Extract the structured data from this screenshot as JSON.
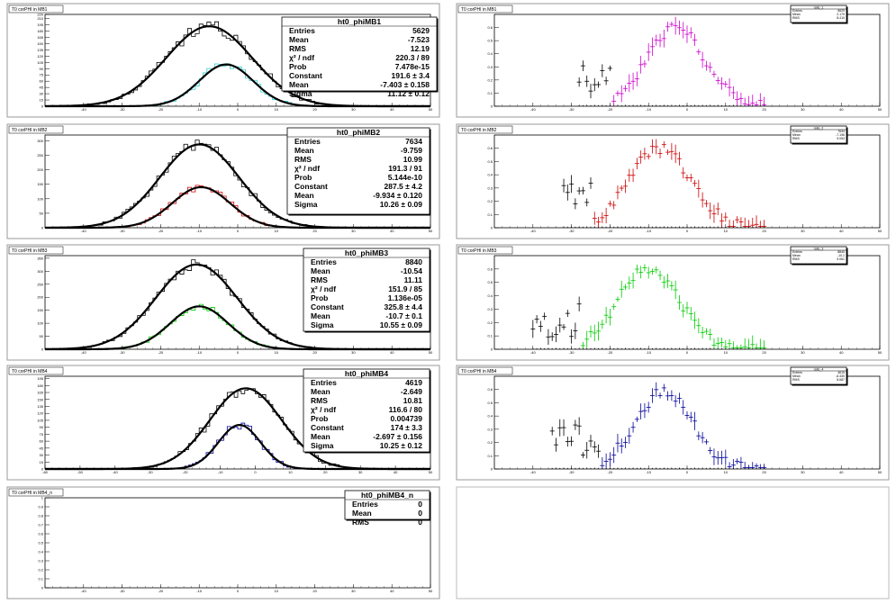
{
  "chart_data": [
    {
      "type": "histogram",
      "pad": "left-1",
      "title": "T0 corPHI in MB1",
      "xlim": [
        -50,
        50
      ],
      "ylim": [
        0,
        220
      ],
      "xticks": [
        -40,
        -30,
        -20,
        -10,
        0,
        10,
        20,
        30,
        40,
        50
      ],
      "xtick_labels": [
        "-40",
        "-30",
        "-20",
        "-10",
        "0",
        "10",
        "20",
        "30",
        "40",
        "50"
      ],
      "yticks": [
        0,
        15,
        30,
        45,
        60,
        75,
        90,
        105,
        120,
        135,
        150,
        165,
        180,
        195,
        210,
        220
      ],
      "ytick_labels": [
        "0",
        "15",
        "30",
        "45",
        "60",
        "75",
        "90",
        "105",
        "120",
        "135",
        "150",
        "165",
        "180",
        "195",
        "210",
        "220"
      ],
      "stats": {
        "name": "ht0_phiMB1",
        "rows": [
          [
            "Entries",
            "5629"
          ],
          [
            "Mean",
            "-7.523"
          ],
          [
            "RMS",
            "12.19"
          ],
          [
            "χ² / ndf",
            "220.3 / 89"
          ],
          [
            "Prob",
            "7.478e-15"
          ],
          [
            "Constant",
            "191.6 ± 3.4"
          ],
          [
            "Mean",
            "-7.403 ± 0.158"
          ],
          [
            "Sigma",
            "11.12 ± 0.12"
          ]
        ]
      },
      "fit": {
        "constant": 191.6,
        "mean": -7.403,
        "sigma": 11.12
      },
      "subset_fit": {
        "constant": 100,
        "mean": -3.0,
        "sigma": 7.0
      },
      "subset_color": "#33cccc",
      "main_color": "#000000"
    },
    {
      "type": "histogram",
      "pad": "left-2",
      "title": "T0 corPHI in MB2",
      "xlim": [
        -50,
        50
      ],
      "ylim": [
        0,
        320
      ],
      "xticks": [
        -40,
        -30,
        -20,
        -10,
        0,
        10,
        20,
        30,
        40,
        50
      ],
      "xtick_labels": [
        "-40",
        "-30",
        "-20",
        "-10",
        "0",
        "10",
        "20",
        "30",
        "40",
        "50"
      ],
      "yticks": [
        0,
        50,
        100,
        150,
        200,
        250,
        300
      ],
      "ytick_labels": [
        "0",
        "50",
        "100",
        "150",
        "200",
        "250",
        "300"
      ],
      "stats": {
        "name": "ht0_phiMB2",
        "rows": [
          [
            "Entries",
            "7634"
          ],
          [
            "Mean",
            "-9.759"
          ],
          [
            "RMS",
            "10.99"
          ],
          [
            "χ² / ndf",
            "191.3 / 91"
          ],
          [
            "Prob",
            "5.144e-10"
          ],
          [
            "Constant",
            "287.5 ± 4.2"
          ],
          [
            "Mean",
            "-9.934 ± 0.120"
          ],
          [
            "Sigma",
            "10.26 ± 0.09"
          ]
        ]
      },
      "fit": {
        "constant": 287.5,
        "mean": -9.934,
        "sigma": 10.26
      },
      "subset_fit": {
        "constant": 140,
        "mean": -9.5,
        "sigma": 7.5
      },
      "subset_color": "#cc0000",
      "main_color": "#000000"
    },
    {
      "type": "histogram",
      "pad": "left-3",
      "title": "T0 corPHI in MB3",
      "xlim": [
        -50,
        50
      ],
      "ylim": [
        0,
        360
      ],
      "xticks": [
        -40,
        -30,
        -20,
        -10,
        0,
        10,
        20,
        30,
        40,
        50
      ],
      "xtick_labels": [
        "-40",
        "-30",
        "-20",
        "-10",
        "0",
        "10",
        "20",
        "30",
        "40",
        "50"
      ],
      "yticks": [
        0,
        50,
        100,
        150,
        200,
        250,
        300,
        350
      ],
      "ytick_labels": [
        "0",
        "50",
        "100",
        "150",
        "200",
        "250",
        "300",
        "350"
      ],
      "stats": {
        "name": "ht0_phiMB3",
        "rows": [
          [
            "Entries",
            "8840"
          ],
          [
            "Mean",
            "-10.54"
          ],
          [
            "RMS",
            "11.11"
          ],
          [
            "χ² / ndf",
            "151.9 / 85"
          ],
          [
            "Prob",
            "1.136e-05"
          ],
          [
            "Constant",
            "325.8 ± 4.4"
          ],
          [
            "Mean",
            "-10.7 ± 0.1"
          ],
          [
            "Sigma",
            "10.55 ± 0.09"
          ]
        ]
      },
      "fit": {
        "constant": 325.8,
        "mean": -10.7,
        "sigma": 10.55
      },
      "subset_fit": {
        "constant": 165,
        "mean": -10.0,
        "sigma": 7.5
      },
      "subset_color": "#00cc00",
      "main_color": "#000000"
    },
    {
      "type": "histogram",
      "pad": "left-4",
      "title": "T0 corPHI in MB4",
      "xlim": [
        -60,
        50
      ],
      "ylim": [
        0,
        200
      ],
      "xticks": [
        -60,
        -50,
        -40,
        -30,
        -20,
        -10,
        0,
        10,
        20,
        30,
        40,
        50
      ],
      "xtick_labels": [
        "-60",
        "-50",
        "-40",
        "-30",
        "-20",
        "-10",
        "0",
        "10",
        "20",
        "30",
        "40",
        "50"
      ],
      "yticks": [
        0,
        15,
        30,
        45,
        60,
        75,
        90,
        105,
        120,
        135,
        150,
        165,
        180,
        195
      ],
      "ytick_labels": [
        "0",
        "15",
        "30",
        "45",
        "60",
        "75",
        "90",
        "105",
        "120",
        "135",
        "150",
        "165",
        "180",
        "195"
      ],
      "stats": {
        "name": "ht0_phiMB4",
        "rows": [
          [
            "Entries",
            "4619"
          ],
          [
            "Mean",
            "-2.649"
          ],
          [
            "RMS",
            "10.81"
          ],
          [
            "χ² / ndf",
            "116.6 / 80"
          ],
          [
            "Prob",
            "0.004739"
          ],
          [
            "Constant",
            "174 ± 3.3"
          ],
          [
            "Mean",
            "-2.697 ± 0.156"
          ],
          [
            "Sigma",
            "10.25 ± 0.12"
          ]
        ]
      },
      "fit": {
        "constant": 174,
        "mean": -2.697,
        "sigma": 10.25
      },
      "subset_fit": {
        "constant": 95,
        "mean": -4.5,
        "sigma": 6.0
      },
      "subset_color": "#000099",
      "main_color": "#000000"
    },
    {
      "type": "histogram",
      "pad": "left-5",
      "title": "T0 corPHI in MB4_n",
      "xlim": [
        -50,
        50
      ],
      "ylim": [
        0,
        1
      ],
      "xticks": [
        -40,
        -30,
        -20,
        -10,
        0,
        10,
        20,
        30,
        40,
        50
      ],
      "xtick_labels": [
        "-40",
        "-30",
        "-20",
        "-10",
        "0",
        "10",
        "20",
        "30",
        "40",
        "50"
      ],
      "yticks": [
        0,
        0.1,
        0.2,
        0.3,
        0.4,
        0.5,
        0.6,
        0.7,
        0.8,
        0.9,
        1
      ],
      "ytick_labels": [
        "0",
        "0.1",
        "0.2",
        "0.3",
        "0.4",
        "0.5",
        "0.6",
        "0.7",
        "0.8",
        "0.9",
        "1"
      ],
      "stats": {
        "name": "ht0_phiMB4_n",
        "rows": [
          [
            "Entries",
            "0"
          ],
          [
            "Mean",
            "0"
          ],
          [
            "RMS",
            "0"
          ]
        ]
      }
    },
    {
      "type": "scatter",
      "pad": "right-1",
      "title": "T0 corPHI in MB1",
      "xlim": [
        -50,
        50
      ],
      "ylim": [
        0,
        0.7
      ],
      "xticks": [
        -40,
        -30,
        -20,
        -10,
        0,
        10,
        20,
        30,
        40,
        50
      ],
      "xtick_labels": [
        "-40",
        "-30",
        "-20",
        "-10",
        "0",
        "10",
        "20",
        "30",
        "40",
        "50"
      ],
      "yticks": [
        0,
        0.1,
        0.2,
        0.3,
        0.4,
        0.5,
        0.6
      ],
      "ytick_labels": [
        "0",
        "0.1",
        "0.2",
        "0.3",
        "0.4",
        "0.5",
        "0.6"
      ],
      "color": "#cc00cc",
      "peak_y": 0.6,
      "peak_x": -3,
      "width": 7.5,
      "x_range": [
        -28,
        20
      ],
      "seed": 11,
      "stats": {
        "name": "ratio_1",
        "rows": [
          [
            "Entries",
            "5629"
          ],
          [
            "Mean",
            "2.179"
          ],
          [
            "RMS",
            "8.410"
          ]
        ]
      }
    },
    {
      "type": "scatter",
      "pad": "right-2",
      "title": "T0 corPHI in MB2",
      "xlim": [
        -50,
        50
      ],
      "ylim": [
        0,
        0.7
      ],
      "xticks": [
        -40,
        -30,
        -20,
        -10,
        0,
        10,
        20,
        30,
        40,
        50
      ],
      "xtick_labels": [
        "-40",
        "-30",
        "-20",
        "-10",
        "0",
        "10",
        "20",
        "30",
        "40",
        "50"
      ],
      "yticks": [
        0,
        0.1,
        0.2,
        0.3,
        0.4,
        0.5,
        0.6
      ],
      "ytick_labels": [
        "0",
        "0.1",
        "0.2",
        "0.3",
        "0.4",
        "0.5",
        "0.6"
      ],
      "color": "#cc0000",
      "peak_y": 0.6,
      "peak_x": -7,
      "width": 8.0,
      "x_range": [
        -32,
        20
      ],
      "seed": 22,
      "stats": {
        "name": "ratio_2",
        "rows": [
          [
            "Entries",
            "7634"
          ],
          [
            "Mean",
            "-7.196"
          ],
          [
            "RMS",
            "9.053"
          ]
        ]
      }
    },
    {
      "type": "scatter",
      "pad": "right-3",
      "title": "T0 corPHI in MB3",
      "xlim": [
        -50,
        50
      ],
      "ylim": [
        0,
        0.7
      ],
      "xticks": [
        -40,
        -30,
        -20,
        -10,
        0,
        10,
        20,
        30,
        40,
        50
      ],
      "xtick_labels": [
        "-40",
        "-30",
        "-20",
        "-10",
        "0",
        "10",
        "20",
        "30",
        "40",
        "50"
      ],
      "yticks": [
        0,
        0.1,
        0.2,
        0.3,
        0.4,
        0.5,
        0.6
      ],
      "ytick_labels": [
        "0",
        "0.1",
        "0.2",
        "0.3",
        "0.4",
        "0.5",
        "0.6"
      ],
      "color": "#00cc00",
      "peak_y": 0.6,
      "peak_x": -10,
      "width": 8.0,
      "x_range": [
        -40,
        20
      ],
      "seed": 33,
      "stats": {
        "name": "ratio_3",
        "rows": [
          [
            "Entries",
            "8840"
          ],
          [
            "Mean",
            "-10.1"
          ],
          [
            "RMS",
            "9.061"
          ]
        ]
      }
    },
    {
      "type": "scatter",
      "pad": "right-4",
      "title": "T0 corPHI in MB4",
      "xlim": [
        -50,
        50
      ],
      "ylim": [
        0,
        0.7
      ],
      "xticks": [
        -40,
        -30,
        -20,
        -10,
        0,
        10,
        20,
        30,
        40,
        50
      ],
      "xtick_labels": [
        "-40",
        "-30",
        "-20",
        "-10",
        "0",
        "10",
        "20",
        "30",
        "40",
        "50"
      ],
      "yticks": [
        0,
        0.1,
        0.2,
        0.3,
        0.4,
        0.5,
        0.6
      ],
      "ytick_labels": [
        "0",
        "0.1",
        "0.2",
        "0.3",
        "0.4",
        "0.5",
        "0.6"
      ],
      "color": "#000099",
      "peak_y": 0.58,
      "peak_x": -6,
      "width": 7.5,
      "x_range": [
        -35,
        20
      ],
      "seed": 44,
      "stats": {
        "name": "ratio_4",
        "rows": [
          [
            "Entries",
            "4619"
          ],
          [
            "Mean",
            "-6.430"
          ],
          [
            "RMS",
            "8.687"
          ]
        ]
      }
    }
  ]
}
